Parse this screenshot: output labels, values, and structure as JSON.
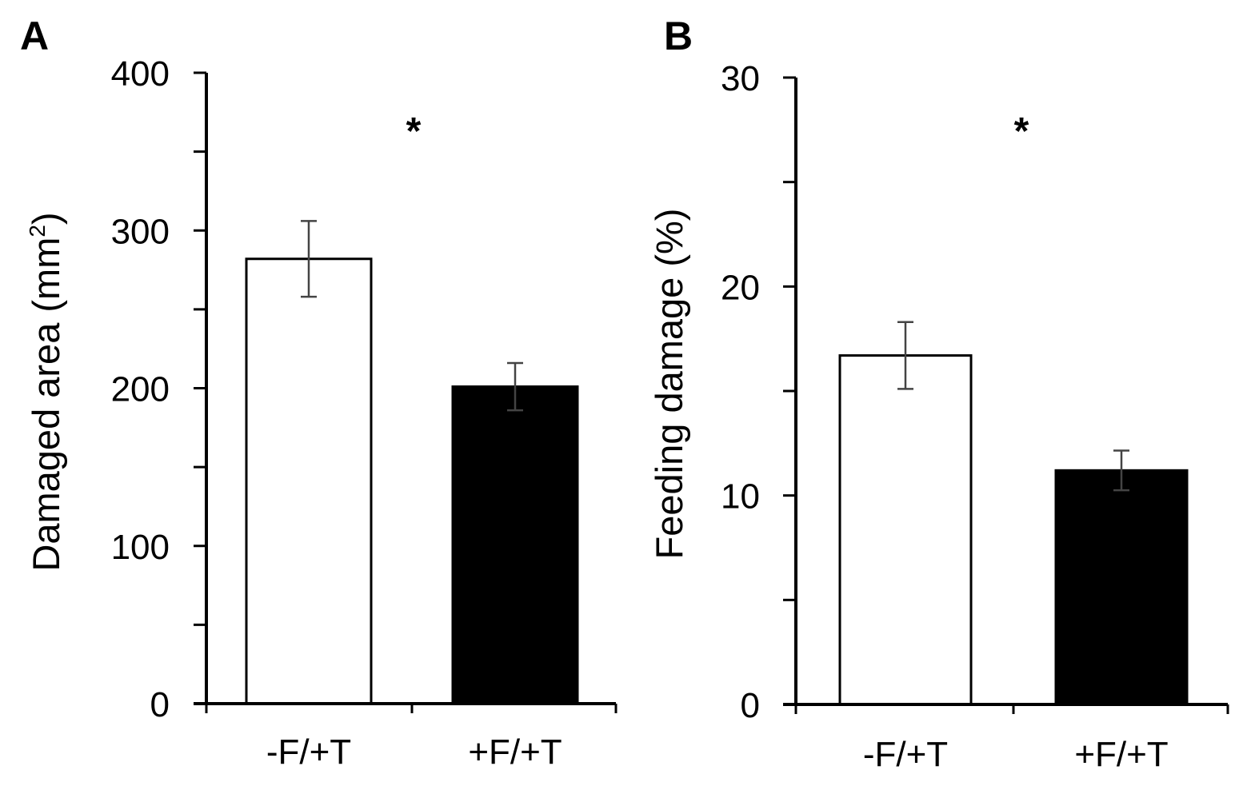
{
  "chart_data": [
    {
      "panel_label": "A",
      "type": "bar",
      "categories": [
        "-F/+T",
        "+F/+T"
      ],
      "values": [
        282,
        201
      ],
      "errors": [
        24,
        15
      ],
      "ylabel": "Damaged area (mm",
      "ylabel_superscript": "2",
      "ylabel_suffix": ")",
      "ylim": [
        0,
        400
      ],
      "major_ticks": [
        0,
        100,
        200,
        300,
        400
      ],
      "minor_step": 50,
      "significance": "*",
      "bar_colors": [
        "#ffffff",
        "#000000"
      ]
    },
    {
      "panel_label": "B",
      "type": "bar",
      "categories": [
        "-F/+T",
        "+F/+T"
      ],
      "values": [
        16.7,
        11.2
      ],
      "errors": [
        1.6,
        0.95
      ],
      "ylabel": "Feeding damage (%)",
      "ylim": [
        0,
        30
      ],
      "major_ticks": [
        0,
        10,
        20,
        30
      ],
      "minor_step": 5,
      "significance": "*",
      "bar_colors": [
        "#ffffff",
        "#000000"
      ]
    }
  ]
}
